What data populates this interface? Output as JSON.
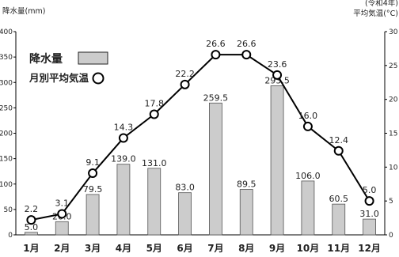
{
  "chart_data": {
    "type": "bar+line",
    "categories": [
      "1月",
      "2月",
      "3月",
      "4月",
      "5月",
      "6月",
      "7月",
      "8月",
      "9月",
      "10月",
      "11月",
      "12月"
    ],
    "series": [
      {
        "name": "降水量",
        "type": "bar",
        "axis": "left",
        "values": [
          5.0,
          26.0,
          79.5,
          139.0,
          131.0,
          83.0,
          259.5,
          89.5,
          293.5,
          106.0,
          60.5,
          31.0
        ],
        "labels": [
          "5.0",
          "26.0",
          "79.5",
          "139.0",
          "131.0",
          "83.0",
          "259.5",
          "89.5",
          "293.5",
          "106.0",
          "60.5",
          "31.0"
        ],
        "color": "#cccccc"
      },
      {
        "name": "月別平均気温",
        "type": "line",
        "axis": "right",
        "values": [
          2.2,
          3.1,
          9.1,
          14.3,
          17.8,
          22.2,
          26.6,
          26.6,
          23.6,
          16.0,
          12.4,
          5.0
        ],
        "labels": [
          "2.2",
          "3.1",
          "9.1",
          "14.3",
          "17.8",
          "22.2",
          "26.6",
          "26.6",
          "23.6",
          "16.0",
          "12.4",
          "5.0"
        ],
        "color": "#000000"
      }
    ],
    "left_axis": {
      "unit_label": "降水量(mm)",
      "ylim": [
        0,
        400
      ],
      "ticks": [
        "0",
        "50",
        "100",
        "150",
        "200",
        "250",
        "300",
        "350",
        "400"
      ]
    },
    "right_axis": {
      "unit_label_line1": "(令和4年)",
      "unit_label_line2": "平均気温(°C)",
      "ylim": [
        0,
        30
      ],
      "ticks": [
        "0",
        "5",
        "10",
        "15",
        "20",
        "25",
        "30"
      ]
    },
    "legend": {
      "placement": "top-left",
      "bar_label": "降水量",
      "line_label": "月別平均気温"
    },
    "grid": false
  }
}
